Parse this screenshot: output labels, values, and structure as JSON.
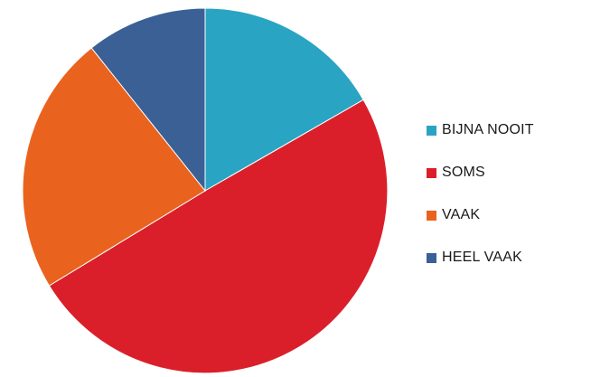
{
  "chart_data": {
    "type": "pie",
    "title": "",
    "legend_position": "right",
    "start": "top",
    "direction": "clockwise",
    "slices": [
      {
        "label": "BIJNA NOOIT",
        "value": 16.7,
        "color": "#2AA4C3"
      },
      {
        "label": "SOMS",
        "value": 49.6,
        "color": "#DA1F2A"
      },
      {
        "label": "VAAK",
        "value": 23.0,
        "color": "#E9631E"
      },
      {
        "label": "HEEL VAAK",
        "value": 10.7,
        "color": "#3A6096"
      }
    ]
  }
}
